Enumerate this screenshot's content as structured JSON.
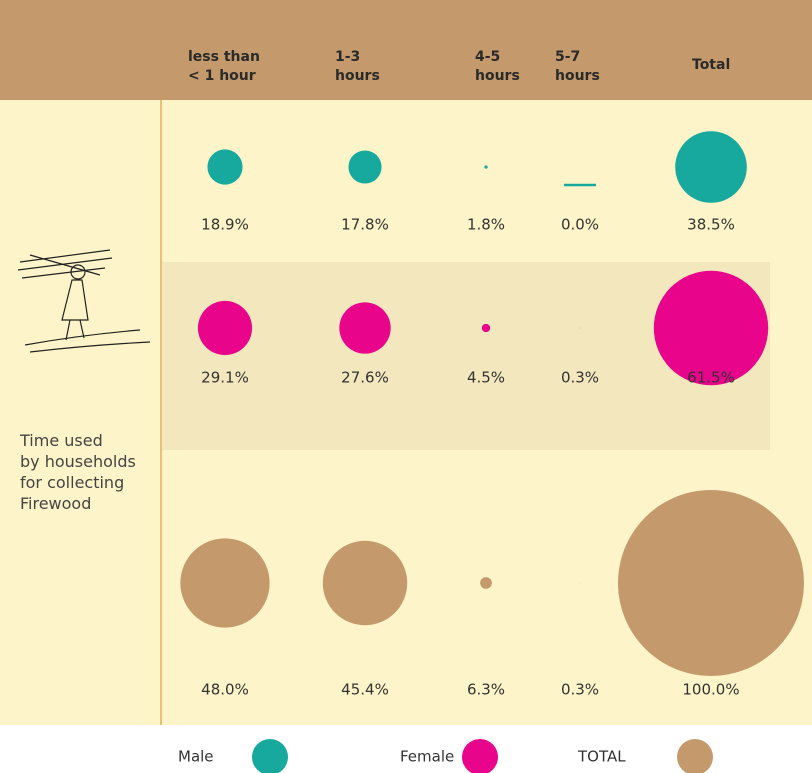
{
  "chart_data": {
    "type": "bubble",
    "categories": [
      "less than\n< 1 hour",
      "1-3\nhours",
      "4-5\nhours",
      "5-7\nhours",
      "Total"
    ],
    "annotation": "Time used\nby households\nfor collecting\nFirewood",
    "series": [
      {
        "name": "Male",
        "color": "#17a99e",
        "values": [
          18.9,
          17.8,
          1.8,
          0.0,
          38.5
        ],
        "value_labels": [
          "18.9%",
          "17.8%",
          "1.8%",
          "0.0%",
          "38.5%"
        ]
      },
      {
        "name": "Female",
        "color": "#e8058b",
        "values": [
          29.1,
          27.6,
          4.5,
          0.3,
          61.5
        ],
        "value_labels": [
          "29.1%",
          "27.6%",
          "4.5%",
          "0.3%",
          "61.5%"
        ]
      },
      {
        "name": "TOTAL",
        "color": "#c49a6c",
        "values": [
          48.0,
          45.4,
          6.3,
          0.3,
          100.0
        ],
        "value_labels": [
          "48.0%",
          "45.4%",
          "6.3%",
          "0.3%",
          "100.0%"
        ]
      }
    ]
  }
}
